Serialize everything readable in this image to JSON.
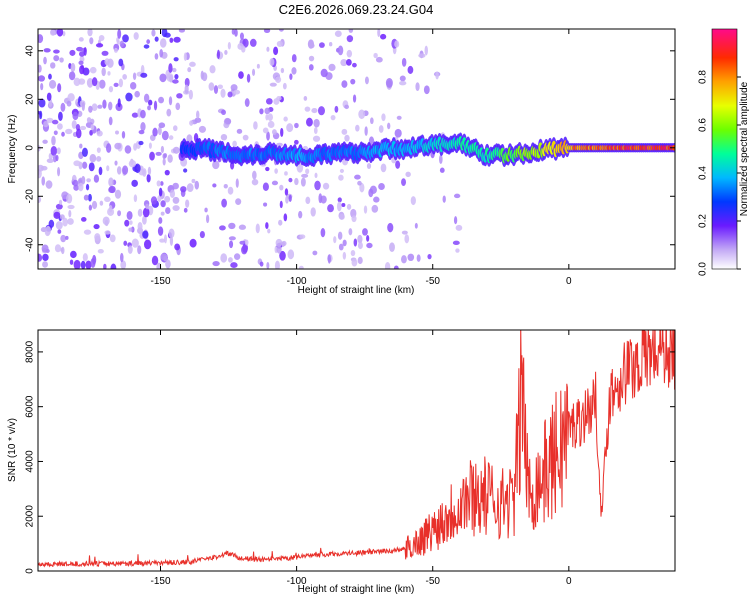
{
  "title": "C2E6.2026.069.23.24.G04",
  "chart_data": [
    {
      "type": "heatmap",
      "xlabel": "Height of straight line (km)",
      "ylabel": "Frequency (Hz)",
      "xlim": [
        -195,
        39
      ],
      "ylim": [
        -50,
        49
      ],
      "xticks": [
        -150,
        -100,
        -50,
        0
      ],
      "yticks": [
        -40,
        -20,
        0,
        20,
        40
      ],
      "colorbar": {
        "label": "Normalized spectral amplitude",
        "range": [
          0,
          1
        ],
        "ticks": [
          0.0,
          0.2,
          0.4,
          0.6,
          0.8
        ]
      },
      "signal_ridge": {
        "x": [
          -140,
          -130,
          -120,
          -110,
          -100,
          -90,
          -80,
          -70,
          -60,
          -50,
          -40,
          -30,
          -20,
          -10,
          0,
          10,
          20,
          30,
          39
        ],
        "frequency": [
          0,
          -1,
          -3,
          -2,
          -3,
          -3,
          -2,
          -1,
          0,
          1,
          2,
          -3,
          -3,
          -1,
          0,
          0,
          0,
          0,
          0
        ],
        "amplitude": [
          0.3,
          0.35,
          0.35,
          0.35,
          0.4,
          0.35,
          0.35,
          0.4,
          0.4,
          0.45,
          0.5,
          0.5,
          0.6,
          0.7,
          0.85,
          0.9,
          0.95,
          0.95,
          0.95
        ]
      }
    },
    {
      "type": "line",
      "xlabel": "Height of straight line (km)",
      "ylabel": "SNR (10 * v/v)",
      "xlim": [
        -195,
        39
      ],
      "ylim": [
        0,
        8800
      ],
      "xticks": [
        -150,
        -100,
        -50,
        0
      ],
      "yticks": [
        0,
        2000,
        4000,
        6000,
        8000
      ],
      "color": "#e8302a",
      "x": [
        -195,
        -180,
        -160,
        -140,
        -130,
        -125,
        -120,
        -110,
        -100,
        -90,
        -80,
        -70,
        -60,
        -55,
        -50,
        -45,
        -40,
        -35,
        -30,
        -25,
        -20,
        -17,
        -15,
        -10,
        -5,
        0,
        5,
        10,
        12,
        15,
        20,
        25,
        30,
        35,
        39
      ],
      "y": [
        250,
        260,
        280,
        320,
        500,
        650,
        450,
        400,
        500,
        600,
        650,
        700,
        800,
        1100,
        1500,
        2000,
        2500,
        2800,
        2700,
        2500,
        2600,
        7000,
        2800,
        3400,
        4200,
        5200,
        5600,
        6200,
        2000,
        6400,
        7200,
        7600,
        8000,
        8200,
        7900
      ]
    }
  ]
}
